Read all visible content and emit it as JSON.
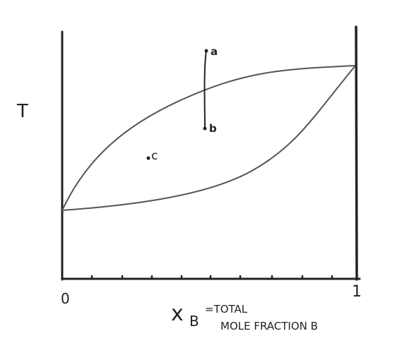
{
  "axis": {
    "y_label": "T",
    "x_min_label": "0",
    "x_max_label": "1",
    "x_label": "x",
    "x_label_subscript": "B",
    "x_label_desc": [
      "=TOTAL",
      "MOLE FRACTION B"
    ]
  },
  "points": [
    {
      "label": "a"
    },
    {
      "label": "b"
    },
    {
      "label": "c"
    }
  ]
}
